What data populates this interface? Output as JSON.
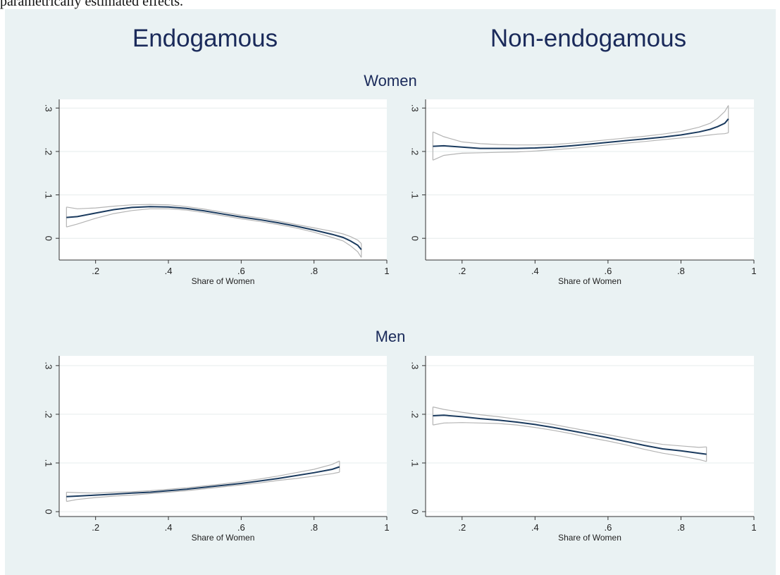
{
  "caption": "parametrically estimated effects.",
  "column_titles": [
    "Endogamous",
    "Non-endogamous"
  ],
  "row_titles": [
    "Women",
    "Men"
  ],
  "colors": {
    "figure_bg": "#eaf2f3",
    "plot_bg": "#ffffff",
    "line": "#1a3a5e",
    "ci": "#b4b4b4",
    "grid": "#e6ecec",
    "title": "#1a2a5a"
  },
  "chart_data": [
    {
      "type": "line",
      "column": "Endogamous",
      "row": "Women",
      "xlabel": "Share of Women",
      "ylabel": "",
      "xlim": [
        0.1,
        1.0
      ],
      "ylim": [
        -0.05,
        0.32
      ],
      "xticks": [
        0.2,
        0.4,
        0.6,
        0.8,
        1.0
      ],
      "xtick_labels": [
        ".2",
        ".4",
        ".6",
        ".8",
        "1"
      ],
      "yticks": [
        0,
        0.1,
        0.2,
        0.3
      ],
      "ytick_labels": [
        "0",
        ".1",
        ".2",
        ".3"
      ],
      "grid": true,
      "x": [
        0.12,
        0.15,
        0.2,
        0.25,
        0.3,
        0.35,
        0.4,
        0.45,
        0.5,
        0.55,
        0.6,
        0.65,
        0.7,
        0.75,
        0.8,
        0.85,
        0.88,
        0.9,
        0.92,
        0.93
      ],
      "series": [
        {
          "values": [
            0.048,
            0.05,
            0.058,
            0.066,
            0.071,
            0.073,
            0.072,
            0.069,
            0.063,
            0.056,
            0.049,
            0.043,
            0.036,
            0.028,
            0.019,
            0.009,
            0.002,
            -0.006,
            -0.016,
            -0.026
          ]
        },
        {
          "values": [
            0.072,
            0.068,
            0.07,
            0.074,
            0.077,
            0.078,
            0.077,
            0.073,
            0.067,
            0.06,
            0.053,
            0.047,
            0.04,
            0.032,
            0.024,
            0.016,
            0.01,
            0.004,
            -0.004,
            -0.012
          ]
        },
        {
          "values": [
            0.026,
            0.033,
            0.046,
            0.057,
            0.064,
            0.068,
            0.068,
            0.065,
            0.059,
            0.052,
            0.045,
            0.039,
            0.032,
            0.024,
            0.014,
            0.002,
            -0.006,
            -0.017,
            -0.031,
            -0.044
          ]
        }
      ]
    },
    {
      "type": "line",
      "column": "Non-endogamous",
      "row": "Women",
      "xlabel": "Share of Women",
      "ylabel": "",
      "xlim": [
        0.1,
        1.0
      ],
      "ylim": [
        -0.05,
        0.32
      ],
      "xticks": [
        0.2,
        0.4,
        0.6,
        0.8,
        1.0
      ],
      "xtick_labels": [
        ".2",
        ".4",
        ".6",
        ".8",
        "1"
      ],
      "yticks": [
        0,
        0.1,
        0.2,
        0.3
      ],
      "ytick_labels": [
        "0",
        ".1",
        ".2",
        ".3"
      ],
      "grid": true,
      "x": [
        0.12,
        0.15,
        0.2,
        0.25,
        0.3,
        0.35,
        0.4,
        0.45,
        0.5,
        0.55,
        0.6,
        0.65,
        0.7,
        0.75,
        0.8,
        0.85,
        0.88,
        0.9,
        0.92,
        0.93
      ],
      "series": [
        {
          "values": [
            0.212,
            0.213,
            0.21,
            0.207,
            0.207,
            0.207,
            0.208,
            0.21,
            0.213,
            0.217,
            0.221,
            0.225,
            0.229,
            0.233,
            0.238,
            0.245,
            0.251,
            0.257,
            0.265,
            0.275
          ]
        },
        {
          "values": [
            0.245,
            0.234,
            0.222,
            0.218,
            0.216,
            0.215,
            0.215,
            0.216,
            0.219,
            0.223,
            0.227,
            0.231,
            0.235,
            0.24,
            0.246,
            0.256,
            0.265,
            0.276,
            0.292,
            0.306
          ]
        },
        {
          "values": [
            0.18,
            0.191,
            0.196,
            0.197,
            0.198,
            0.199,
            0.201,
            0.204,
            0.207,
            0.211,
            0.215,
            0.219,
            0.223,
            0.227,
            0.231,
            0.235,
            0.238,
            0.24,
            0.241,
            0.243
          ]
        }
      ]
    },
    {
      "type": "line",
      "column": "Endogamous",
      "row": "Men",
      "xlabel": "Share of Women",
      "ylabel": "",
      "xlim": [
        0.1,
        1.0
      ],
      "ylim": [
        -0.01,
        0.32
      ],
      "xticks": [
        0.2,
        0.4,
        0.6,
        0.8,
        1.0
      ],
      "xtick_labels": [
        ".2",
        ".4",
        ".6",
        ".8",
        "1"
      ],
      "yticks": [
        0,
        0.1,
        0.2,
        0.3
      ],
      "ytick_labels": [
        "0",
        ".1",
        ".2",
        ".3"
      ],
      "grid": true,
      "x": [
        0.12,
        0.15,
        0.2,
        0.25,
        0.3,
        0.35,
        0.4,
        0.45,
        0.5,
        0.55,
        0.6,
        0.65,
        0.7,
        0.75,
        0.8,
        0.85,
        0.87
      ],
      "series": [
        {
          "values": [
            0.031,
            0.032,
            0.034,
            0.036,
            0.038,
            0.04,
            0.043,
            0.046,
            0.05,
            0.054,
            0.058,
            0.063,
            0.068,
            0.074,
            0.08,
            0.087,
            0.092
          ]
        },
        {
          "values": [
            0.04,
            0.039,
            0.038,
            0.04,
            0.041,
            0.043,
            0.046,
            0.049,
            0.053,
            0.057,
            0.062,
            0.067,
            0.073,
            0.08,
            0.087,
            0.097,
            0.104
          ]
        },
        {
          "values": [
            0.021,
            0.025,
            0.029,
            0.032,
            0.034,
            0.037,
            0.04,
            0.043,
            0.047,
            0.051,
            0.055,
            0.059,
            0.064,
            0.068,
            0.073,
            0.078,
            0.081
          ]
        }
      ]
    },
    {
      "type": "line",
      "column": "Non-endogamous",
      "row": "Men",
      "xlabel": "Share of Women",
      "ylabel": "",
      "xlim": [
        0.1,
        1.0
      ],
      "ylim": [
        -0.01,
        0.32
      ],
      "xticks": [
        0.2,
        0.4,
        0.6,
        0.8,
        1.0
      ],
      "xtick_labels": [
        ".2",
        ".4",
        ".6",
        ".8",
        "1"
      ],
      "yticks": [
        0,
        0.1,
        0.2,
        0.3
      ],
      "ytick_labels": [
        "0",
        ".1",
        ".2",
        ".3"
      ],
      "grid": true,
      "x": [
        0.12,
        0.15,
        0.2,
        0.25,
        0.3,
        0.35,
        0.4,
        0.45,
        0.5,
        0.55,
        0.6,
        0.65,
        0.7,
        0.75,
        0.8,
        0.85,
        0.87
      ],
      "series": [
        {
          "values": [
            0.197,
            0.198,
            0.195,
            0.191,
            0.188,
            0.184,
            0.179,
            0.173,
            0.166,
            0.159,
            0.152,
            0.144,
            0.136,
            0.129,
            0.125,
            0.12,
            0.118
          ]
        },
        {
          "values": [
            0.215,
            0.21,
            0.204,
            0.199,
            0.195,
            0.19,
            0.185,
            0.179,
            0.172,
            0.165,
            0.158,
            0.151,
            0.144,
            0.138,
            0.135,
            0.132,
            0.133
          ]
        },
        {
          "values": [
            0.178,
            0.182,
            0.183,
            0.182,
            0.181,
            0.178,
            0.173,
            0.167,
            0.16,
            0.152,
            0.145,
            0.137,
            0.128,
            0.12,
            0.114,
            0.107,
            0.103
          ]
        }
      ]
    }
  ]
}
